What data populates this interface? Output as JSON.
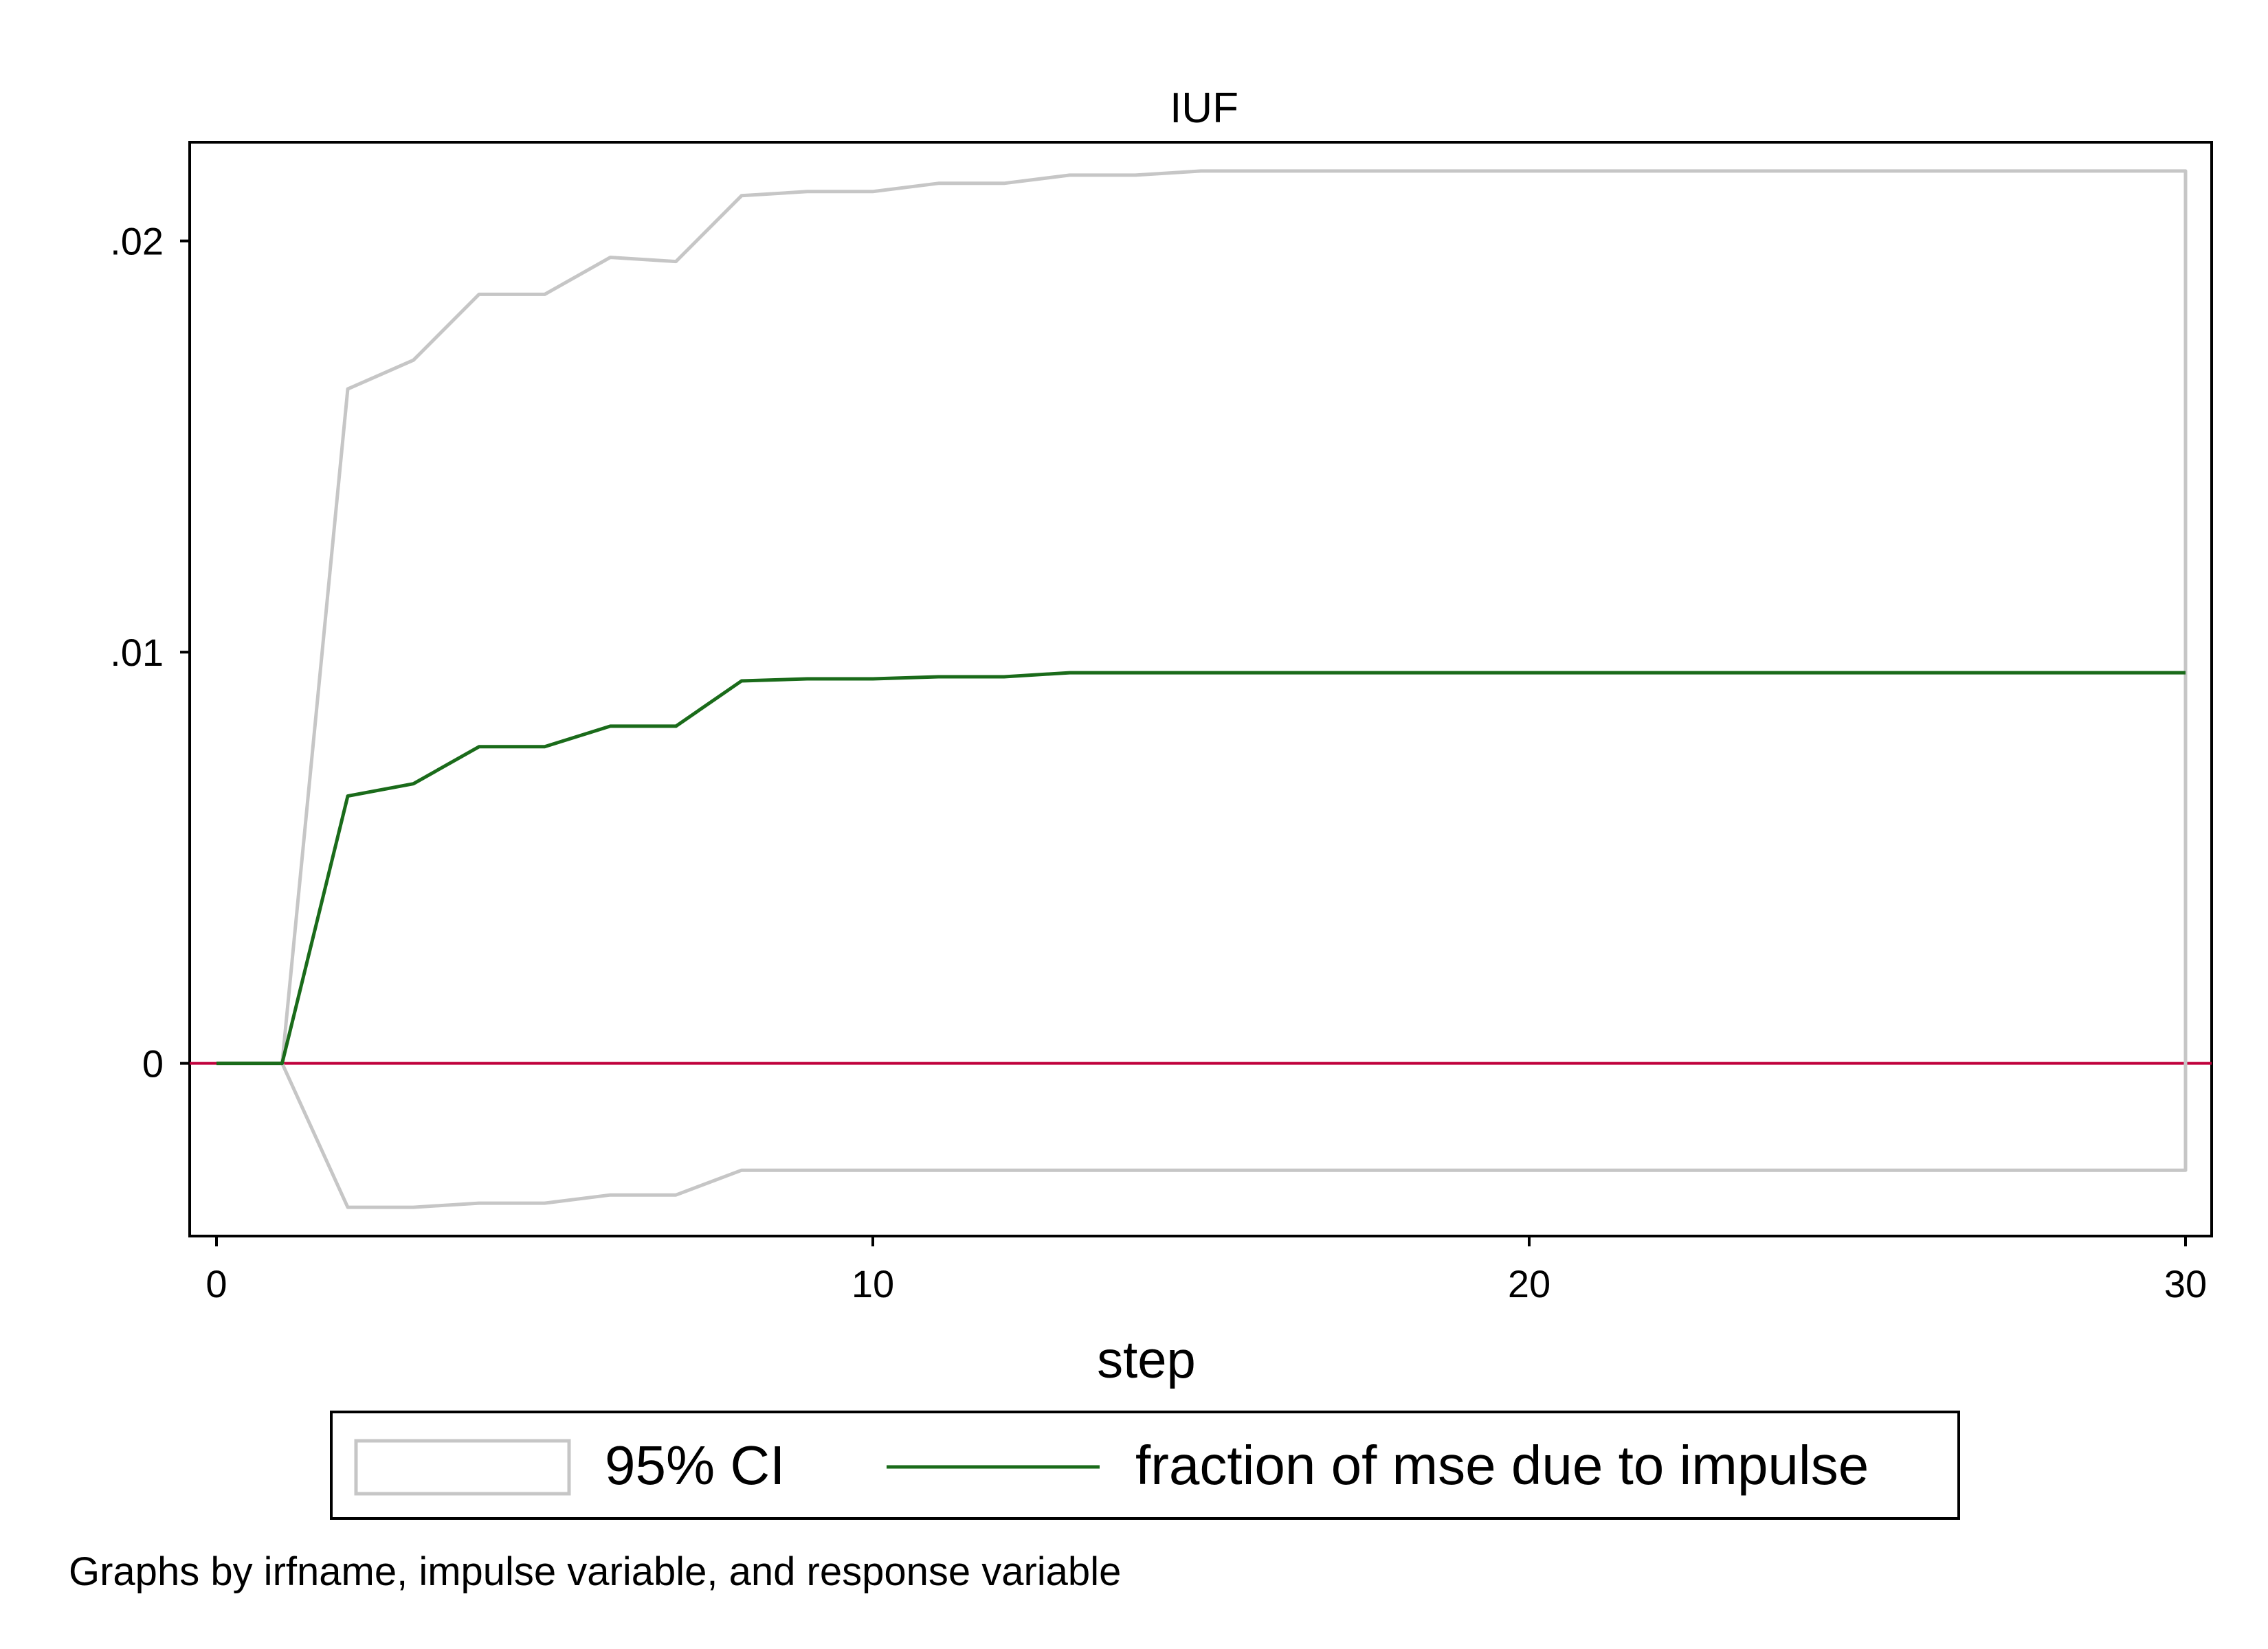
{
  "chart_data": {
    "type": "line",
    "title": "IUF",
    "xlabel": "step",
    "ylabel": "",
    "xlim": [
      0,
      30
    ],
    "ylim": [
      -0.0042,
      0.0224
    ],
    "xticks": [
      0,
      10,
      20,
      30
    ],
    "xtick_labels": [
      "0",
      "10",
      "20",
      "30"
    ],
    "yticks": [
      0,
      0.01,
      0.02
    ],
    "ytick_labels": [
      "0",
      ".01",
      ".02"
    ],
    "grid": false,
    "legend_position": "bottom",
    "zero_line_color": "#c0003c",
    "series": [
      {
        "name": "fraction of mse due to impulse",
        "color": "#1a6b1a",
        "x": [
          0,
          1,
          2,
          3,
          4,
          5,
          6,
          7,
          8,
          9,
          10,
          11,
          12,
          13,
          14,
          15,
          16,
          17,
          18,
          19,
          20,
          21,
          22,
          23,
          24,
          25,
          26,
          27,
          28,
          29,
          30
        ],
        "values": [
          0,
          0,
          0.0065,
          0.0068,
          0.0077,
          0.0077,
          0.0082,
          0.0082,
          0.0093,
          0.00935,
          0.00935,
          0.0094,
          0.0094,
          0.0095,
          0.0095,
          0.0095,
          0.0095,
          0.0095,
          0.0095,
          0.0095,
          0.0095,
          0.0095,
          0.0095,
          0.0095,
          0.0095,
          0.0095,
          0.0095,
          0.0095,
          0.0095,
          0.0095,
          0.0095
        ]
      }
    ],
    "ci": {
      "name": "95% CI",
      "color": "#c6c6c6",
      "x": [
        0,
        1,
        2,
        3,
        4,
        5,
        6,
        7,
        8,
        9,
        10,
        11,
        12,
        13,
        14,
        15,
        16,
        17,
        18,
        19,
        20,
        21,
        22,
        23,
        24,
        25,
        26,
        27,
        28,
        29,
        30
      ],
      "upper": [
        0,
        0,
        0.0164,
        0.0171,
        0.0187,
        0.0187,
        0.0196,
        0.0195,
        0.0211,
        0.0212,
        0.0212,
        0.0214,
        0.0214,
        0.0216,
        0.0216,
        0.0217,
        0.0217,
        0.0217,
        0.0217,
        0.0217,
        0.0217,
        0.0217,
        0.0217,
        0.0217,
        0.0217,
        0.0217,
        0.0217,
        0.0217,
        0.0217,
        0.0217,
        0.0217
      ],
      "lower": [
        0,
        0,
        -0.0035,
        -0.0035,
        -0.0034,
        -0.0034,
        -0.0032,
        -0.0032,
        -0.0026,
        -0.0026,
        -0.0026,
        -0.0026,
        -0.0026,
        -0.0026,
        -0.0026,
        -0.0026,
        -0.0026,
        -0.0026,
        -0.0026,
        -0.0026,
        -0.0026,
        -0.0026,
        -0.0026,
        -0.0026,
        -0.0026,
        -0.0026,
        -0.0026,
        -0.0026,
        -0.0026,
        -0.0026,
        -0.0026
      ]
    }
  },
  "legend": {
    "ci_label": "95% CI",
    "series_label": "fraction of mse due to impulse"
  },
  "note": "Graphs by irfname, impulse variable, and response variable"
}
